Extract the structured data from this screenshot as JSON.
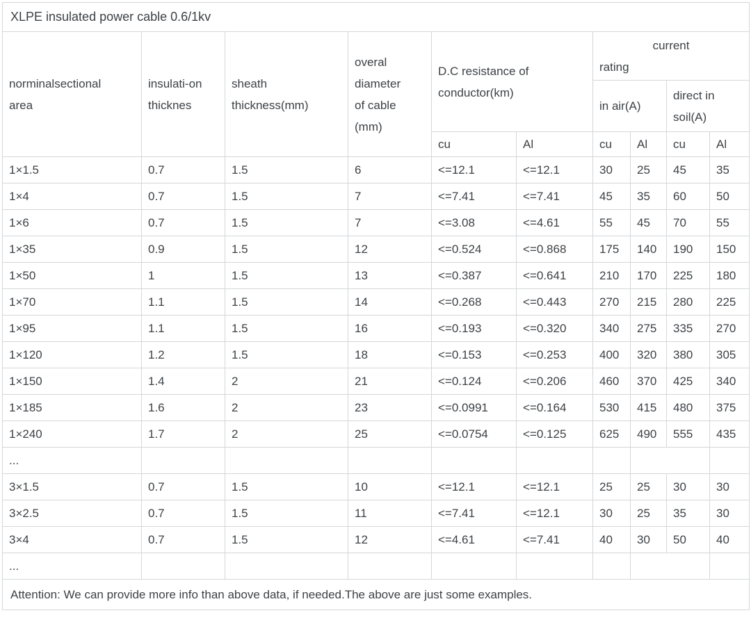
{
  "title": "XLPE insulated power cable 0.6/1kv",
  "headers": {
    "nominal_area": "norminalsectional\narea",
    "insulation_thickness": "insulati-on\nthicknes",
    "sheath_thickness": "sheath\nthickness(mm)",
    "overall_diameter": "overal\ndiameter\nof cable\n(mm)",
    "dc_resistance": "D.C resistance of\nconductor(km)",
    "current_rating_line1": "current",
    "current_rating_line2": "rating",
    "in_air": "in air(A)",
    "direct_in_soil": "direct in\nsoil(A)",
    "res_cu": "cu",
    "res_al": "Al",
    "air_cu": "cu",
    "air_al": "Al",
    "soil_cu": "cu",
    "soil_al": "Al"
  },
  "rows": [
    {
      "cells": [
        "1×1.5",
        "0.7",
        "1.5",
        "6",
        "<=12.1",
        "<=12.1",
        "30",
        "25",
        "45",
        "35"
      ]
    },
    {
      "cells": [
        "1×4",
        "0.7",
        "1.5",
        "7",
        "<=7.41",
        "<=7.41",
        "45",
        "35",
        "60",
        "50"
      ]
    },
    {
      "cells": [
        "1×6",
        "0.7",
        "1.5",
        "7",
        "<=3.08",
        "<=4.61",
        "55",
        "45",
        "70",
        "55"
      ]
    },
    {
      "cells": [
        "1×35",
        "0.9",
        "1.5",
        "12",
        "<=0.524",
        "<=0.868",
        "175",
        "140",
        "190",
        "150"
      ]
    },
    {
      "cells": [
        "1×50",
        "1",
        "1.5",
        "13",
        "<=0.387",
        "<=0.641",
        "210",
        "170",
        "225",
        "180"
      ]
    },
    {
      "cells": [
        "1×70",
        "1.1",
        "1.5",
        "14",
        "<=0.268",
        "<=0.443",
        "270",
        "215",
        "280",
        "225"
      ]
    },
    {
      "cells": [
        "1×95",
        "1.1",
        "1.5",
        "16",
        "<=0.193",
        "<=0.320",
        "340",
        "275",
        "335",
        "270"
      ]
    },
    {
      "cells": [
        "1×120",
        "1.2",
        "1.5",
        "18",
        "<=0.153",
        "<=0.253",
        "400",
        "320",
        "380",
        "305"
      ]
    },
    {
      "cells": [
        "1×150",
        "1.4",
        "2",
        "21",
        "<=0.124",
        "<=0.206",
        "460",
        "370",
        "425",
        "340"
      ]
    },
    {
      "cells": [
        "1×185",
        "1.6",
        "2",
        "23",
        "<=0.0991",
        "<=0.164",
        "530",
        "415",
        "480",
        "375"
      ]
    },
    {
      "cells": [
        "1×240",
        "1.7",
        "2",
        "25",
        "<=0.0754",
        "<=0.125",
        "625",
        "490",
        "555",
        "435"
      ]
    },
    {
      "ellipsis": true,
      "cells": [
        "...",
        "",
        "",
        "",
        "",
        "",
        "",
        "",
        ""
      ]
    },
    {
      "cells": [
        "3×1.5",
        "0.7",
        "1.5",
        "10",
        "<=12.1",
        "<=12.1",
        "25",
        "25",
        "30",
        "30"
      ]
    },
    {
      "cells": [
        "3×2.5",
        "0.7",
        "1.5",
        "11",
        "<=7.41",
        "<=12.1",
        "30",
        "25",
        "35",
        "30"
      ]
    },
    {
      "cells": [
        "3×4",
        "0.7",
        "1.5",
        "12",
        "<=4.61",
        "<=7.41",
        "40",
        "30",
        "50",
        "40"
      ]
    },
    {
      "ellipsis": true,
      "cells": [
        "...",
        "",
        "",
        "",
        "",
        "",
        "",
        "",
        ""
      ]
    }
  ],
  "attention": "Attention: We can provide more info than above data, if needed.The above are just some examples.",
  "colors": {
    "text": "#3d4145",
    "border": "#d4d6d8",
    "background": "#ffffff"
  }
}
